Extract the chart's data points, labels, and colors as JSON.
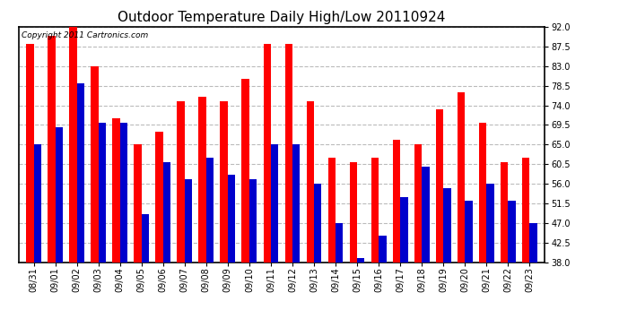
{
  "title": "Outdoor Temperature Daily High/Low 20110924",
  "copyright": "Copyright 2011 Cartronics.com",
  "dates": [
    "08/31",
    "09/01",
    "09/02",
    "09/03",
    "09/04",
    "09/05",
    "09/06",
    "09/07",
    "09/08",
    "09/09",
    "09/10",
    "09/11",
    "09/12",
    "09/13",
    "09/14",
    "09/15",
    "09/16",
    "09/17",
    "09/18",
    "09/19",
    "09/20",
    "09/21",
    "09/22",
    "09/23"
  ],
  "highs": [
    88,
    90,
    92,
    83,
    71,
    65,
    68,
    75,
    76,
    75,
    80,
    88,
    88,
    75,
    62,
    61,
    62,
    66,
    65,
    73,
    77,
    70,
    61,
    62
  ],
  "lows": [
    65,
    69,
    79,
    70,
    70,
    49,
    61,
    57,
    62,
    58,
    57,
    65,
    65,
    56,
    47,
    39,
    44,
    53,
    60,
    55,
    52,
    56,
    52,
    47
  ],
  "high_color": "#ff0000",
  "low_color": "#0000cc",
  "bg_color": "#ffffff",
  "grid_color": "#bbbbbb",
  "ylim": [
    38.0,
    92.0
  ],
  "yticks": [
    38.0,
    42.5,
    47.0,
    51.5,
    56.0,
    60.5,
    65.0,
    69.5,
    74.0,
    78.5,
    83.0,
    87.5,
    92.0
  ],
  "bar_width": 0.35,
  "title_fontsize": 11,
  "tick_fontsize": 7,
  "copyright_fontsize": 6.5
}
